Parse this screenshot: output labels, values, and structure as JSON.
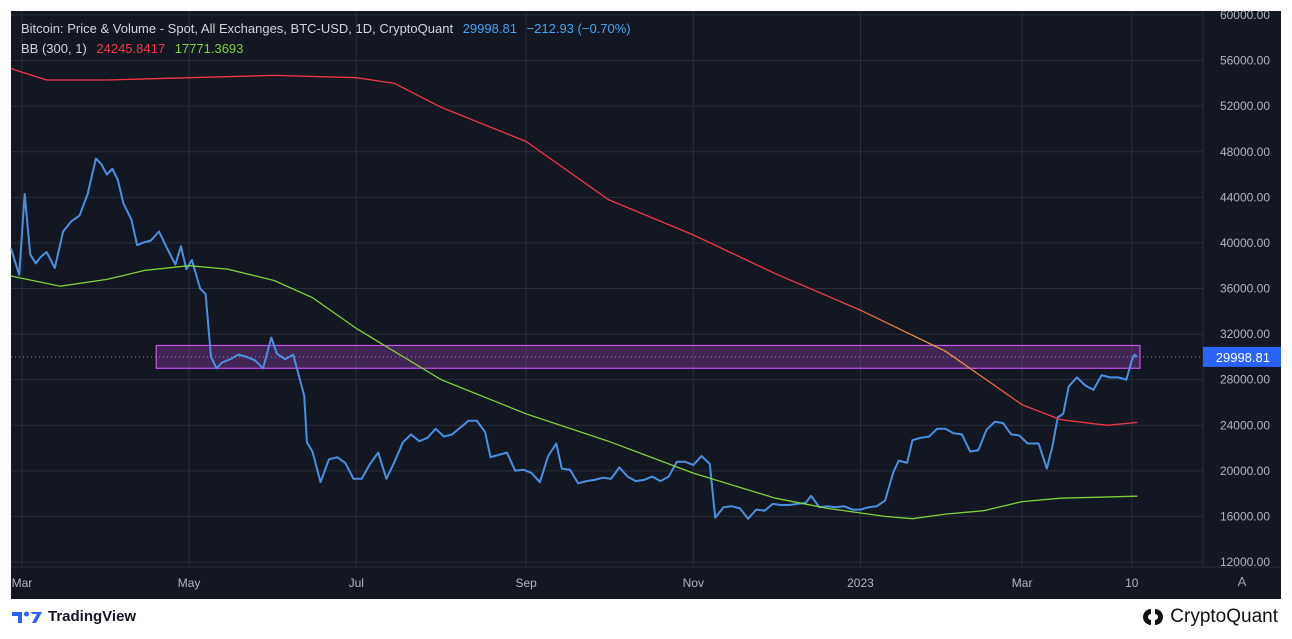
{
  "legend": {
    "title": "Bitcoin: Price & Volume - Spot, All Exchanges, BTC-USD, 1D, CryptoQuant",
    "last_price": "29998.81",
    "change": "−212.93 (−0.70%)",
    "bb_label": "BB (300, 1)",
    "bb_upper": "24245.8417",
    "bb_lower": "17771.3693"
  },
  "price_tag": "29998.81",
  "auto_button": "A",
  "logos": {
    "tradingview": "TradingView",
    "cryptoquant": "CryptoQuant"
  },
  "colors": {
    "background": "#131722",
    "price": "#4a90e2",
    "bb_upper": "#f23645",
    "bb_lower": "#7fd03d",
    "zone": "#c84ff0",
    "grid": "#2a2e39"
  },
  "chart_data": {
    "type": "line",
    "title": "Bitcoin: Price & Volume - Spot, All Exchanges, BTC-USD, 1D, CryptoQuant",
    "xlim": [
      "2022-02-25",
      "2023-05-06"
    ],
    "ylim": [
      12000,
      60000
    ],
    "y_ticks": [
      12000,
      16000,
      20000,
      24000,
      28000,
      32000,
      36000,
      40000,
      44000,
      48000,
      52000,
      56000,
      60000
    ],
    "x_ticks": [
      {
        "date": "2022-03-01",
        "label": "Mar"
      },
      {
        "date": "2022-05-01",
        "label": "May"
      },
      {
        "date": "2022-07-01",
        "label": "Jul"
      },
      {
        "date": "2022-09-01",
        "label": "Sep"
      },
      {
        "date": "2022-11-01",
        "label": "Nov"
      },
      {
        "date": "2023-01-01",
        "label": "2023"
      },
      {
        "date": "2023-03-01",
        "label": "Mar"
      },
      {
        "date": "2023-04-10",
        "label": "10"
      }
    ],
    "grid": true,
    "last_value_line": 29998.81,
    "zone": {
      "x": [
        "2022-04-19",
        "2023-04-13"
      ],
      "y": [
        29000,
        31000
      ]
    },
    "series": [
      {
        "name": "Bitcoin: Price & Volume - Spot, All Exchanges, BTC-USD, 1D, CryptoQuant",
        "color": "#4a90e2",
        "points": [
          [
            "2022-02-25",
            39500
          ],
          [
            "2022-02-28",
            37200
          ],
          [
            "2022-03-02",
            44300
          ],
          [
            "2022-03-04",
            39000
          ],
          [
            "2022-03-06",
            38200
          ],
          [
            "2022-03-08",
            38800
          ],
          [
            "2022-03-10",
            39200
          ],
          [
            "2022-03-13",
            37800
          ],
          [
            "2022-03-16",
            41000
          ],
          [
            "2022-03-19",
            41900
          ],
          [
            "2022-03-22",
            42400
          ],
          [
            "2022-03-25",
            44300
          ],
          [
            "2022-03-28",
            47400
          ],
          [
            "2022-03-30",
            46900
          ],
          [
            "2022-04-01",
            46000
          ],
          [
            "2022-04-03",
            46500
          ],
          [
            "2022-04-05",
            45500
          ],
          [
            "2022-04-07",
            43500
          ],
          [
            "2022-04-10",
            42000
          ],
          [
            "2022-04-12",
            39800
          ],
          [
            "2022-04-14",
            40000
          ],
          [
            "2022-04-17",
            40200
          ],
          [
            "2022-04-20",
            41000
          ],
          [
            "2022-04-23",
            39500
          ],
          [
            "2022-04-26",
            38100
          ],
          [
            "2022-04-28",
            39700
          ],
          [
            "2022-04-30",
            37700
          ],
          [
            "2022-05-02",
            38500
          ],
          [
            "2022-05-05",
            36000
          ],
          [
            "2022-05-07",
            35500
          ],
          [
            "2022-05-09",
            30000
          ],
          [
            "2022-05-11",
            29000
          ],
          [
            "2022-05-13",
            29500
          ],
          [
            "2022-05-16",
            29800
          ],
          [
            "2022-05-19",
            30200
          ],
          [
            "2022-05-22",
            30000
          ],
          [
            "2022-05-25",
            29700
          ],
          [
            "2022-05-28",
            29000
          ],
          [
            "2022-05-31",
            31700
          ],
          [
            "2022-06-02",
            30300
          ],
          [
            "2022-06-05",
            29800
          ],
          [
            "2022-06-08",
            30200
          ],
          [
            "2022-06-10",
            28400
          ],
          [
            "2022-06-12",
            26600
          ],
          [
            "2022-06-13",
            22500
          ],
          [
            "2022-06-15",
            21700
          ],
          [
            "2022-06-18",
            19000
          ],
          [
            "2022-06-21",
            21000
          ],
          [
            "2022-06-24",
            21200
          ],
          [
            "2022-06-27",
            20700
          ],
          [
            "2022-06-30",
            19300
          ],
          [
            "2022-07-03",
            19300
          ],
          [
            "2022-07-06",
            20600
          ],
          [
            "2022-07-09",
            21600
          ],
          [
            "2022-07-12",
            19300
          ],
          [
            "2022-07-15",
            20800
          ],
          [
            "2022-07-18",
            22500
          ],
          [
            "2022-07-21",
            23200
          ],
          [
            "2022-07-24",
            22600
          ],
          [
            "2022-07-27",
            22900
          ],
          [
            "2022-07-30",
            23700
          ],
          [
            "2022-08-02",
            23000
          ],
          [
            "2022-08-05",
            23200
          ],
          [
            "2022-08-08",
            23800
          ],
          [
            "2022-08-11",
            24400
          ],
          [
            "2022-08-14",
            24400
          ],
          [
            "2022-08-17",
            23400
          ],
          [
            "2022-08-19",
            21200
          ],
          [
            "2022-08-22",
            21400
          ],
          [
            "2022-08-25",
            21600
          ],
          [
            "2022-08-28",
            20000
          ],
          [
            "2022-08-31",
            20100
          ],
          [
            "2022-09-03",
            19800
          ],
          [
            "2022-09-06",
            19000
          ],
          [
            "2022-09-09",
            21300
          ],
          [
            "2022-09-12",
            22400
          ],
          [
            "2022-09-14",
            20200
          ],
          [
            "2022-09-17",
            20100
          ],
          [
            "2022-09-20",
            18900
          ],
          [
            "2022-09-23",
            19100
          ],
          [
            "2022-09-26",
            19200
          ],
          [
            "2022-09-29",
            19400
          ],
          [
            "2022-10-02",
            19300
          ],
          [
            "2022-10-05",
            20300
          ],
          [
            "2022-10-08",
            19500
          ],
          [
            "2022-10-11",
            19100
          ],
          [
            "2022-10-14",
            19200
          ],
          [
            "2022-10-17",
            19500
          ],
          [
            "2022-10-20",
            19100
          ],
          [
            "2022-10-23",
            19500
          ],
          [
            "2022-10-26",
            20800
          ],
          [
            "2022-10-29",
            20800
          ],
          [
            "2022-11-01",
            20500
          ],
          [
            "2022-11-04",
            21300
          ],
          [
            "2022-11-07",
            20600
          ],
          [
            "2022-11-09",
            15900
          ],
          [
            "2022-11-12",
            16800
          ],
          [
            "2022-11-15",
            16900
          ],
          [
            "2022-11-18",
            16700
          ],
          [
            "2022-11-21",
            15800
          ],
          [
            "2022-11-24",
            16600
          ],
          [
            "2022-11-27",
            16500
          ],
          [
            "2022-11-30",
            17100
          ],
          [
            "2022-12-03",
            17000
          ],
          [
            "2022-12-06",
            17000
          ],
          [
            "2022-12-09",
            17100
          ],
          [
            "2022-12-12",
            17200
          ],
          [
            "2022-12-14",
            17800
          ],
          [
            "2022-12-17",
            16800
          ],
          [
            "2022-12-20",
            16900
          ],
          [
            "2022-12-23",
            16800
          ],
          [
            "2022-12-26",
            16900
          ],
          [
            "2022-12-29",
            16600
          ],
          [
            "2023-01-01",
            16600
          ],
          [
            "2023-01-04",
            16800
          ],
          [
            "2023-01-07",
            16900
          ],
          [
            "2023-01-10",
            17400
          ],
          [
            "2023-01-13",
            19900
          ],
          [
            "2023-01-15",
            20900
          ],
          [
            "2023-01-18",
            20700
          ],
          [
            "2023-01-20",
            22700
          ],
          [
            "2023-01-23",
            22900
          ],
          [
            "2023-01-26",
            23000
          ],
          [
            "2023-01-29",
            23700
          ],
          [
            "2023-02-01",
            23700
          ],
          [
            "2023-02-04",
            23300
          ],
          [
            "2023-02-07",
            23200
          ],
          [
            "2023-02-10",
            21700
          ],
          [
            "2023-02-13",
            21800
          ],
          [
            "2023-02-16",
            23600
          ],
          [
            "2023-02-19",
            24300
          ],
          [
            "2023-02-22",
            24200
          ],
          [
            "2023-02-25",
            23200
          ],
          [
            "2023-02-28",
            23100
          ],
          [
            "2023-03-03",
            22400
          ],
          [
            "2023-03-07",
            22400
          ],
          [
            "2023-03-10",
            20200
          ],
          [
            "2023-03-12",
            22100
          ],
          [
            "2023-03-14",
            24700
          ],
          [
            "2023-03-16",
            25000
          ],
          [
            "2023-03-18",
            27400
          ],
          [
            "2023-03-21",
            28200
          ],
          [
            "2023-03-24",
            27500
          ],
          [
            "2023-03-27",
            27100
          ],
          [
            "2023-03-30",
            28400
          ],
          [
            "2023-04-02",
            28200
          ],
          [
            "2023-04-05",
            28200
          ],
          [
            "2023-04-08",
            28000
          ],
          [
            "2023-04-10",
            29700
          ],
          [
            "2023-04-11",
            30200
          ],
          [
            "2023-04-12",
            29998.81
          ]
        ]
      },
      {
        "name": "BB (300, 1)",
        "color": "#f23645",
        "points": [
          [
            "2022-02-25",
            55300
          ],
          [
            "2022-03-10",
            54300
          ],
          [
            "2022-04-01",
            54300
          ],
          [
            "2022-05-01",
            54500
          ],
          [
            "2022-06-01",
            54700
          ],
          [
            "2022-07-01",
            54500
          ],
          [
            "2022-07-15",
            54000
          ],
          [
            "2022-08-01",
            51900
          ],
          [
            "2022-09-01",
            48900
          ],
          [
            "2022-10-01",
            43800
          ],
          [
            "2022-11-01",
            40700
          ],
          [
            "2022-12-01",
            37300
          ],
          [
            "2023-01-01",
            34100
          ],
          [
            "2023-02-01",
            30500
          ],
          [
            "2023-03-01",
            25800
          ],
          [
            "2023-03-15",
            24500
          ],
          [
            "2023-04-01",
            24000
          ],
          [
            "2023-04-12",
            24245.8417
          ]
        ]
      },
      {
        "name": "BB (300, 1)",
        "color": "#7fd03d",
        "points": [
          [
            "2022-02-25",
            37100
          ],
          [
            "2022-03-15",
            36200
          ],
          [
            "2022-04-01",
            36800
          ],
          [
            "2022-04-15",
            37600
          ],
          [
            "2022-05-01",
            38000
          ],
          [
            "2022-05-15",
            37700
          ],
          [
            "2022-06-01",
            36700
          ],
          [
            "2022-06-15",
            35200
          ],
          [
            "2022-07-01",
            32500
          ],
          [
            "2022-08-01",
            28000
          ],
          [
            "2022-09-01",
            25000
          ],
          [
            "2022-10-01",
            22600
          ],
          [
            "2022-11-01",
            19800
          ],
          [
            "2022-12-01",
            17600
          ],
          [
            "2022-12-20",
            16700
          ],
          [
            "2023-01-10",
            16000
          ],
          [
            "2023-01-20",
            15800
          ],
          [
            "2023-02-01",
            16200
          ],
          [
            "2023-02-15",
            16500
          ],
          [
            "2023-03-01",
            17300
          ],
          [
            "2023-03-15",
            17600
          ],
          [
            "2023-04-12",
            17771.3693
          ]
        ]
      }
    ]
  }
}
